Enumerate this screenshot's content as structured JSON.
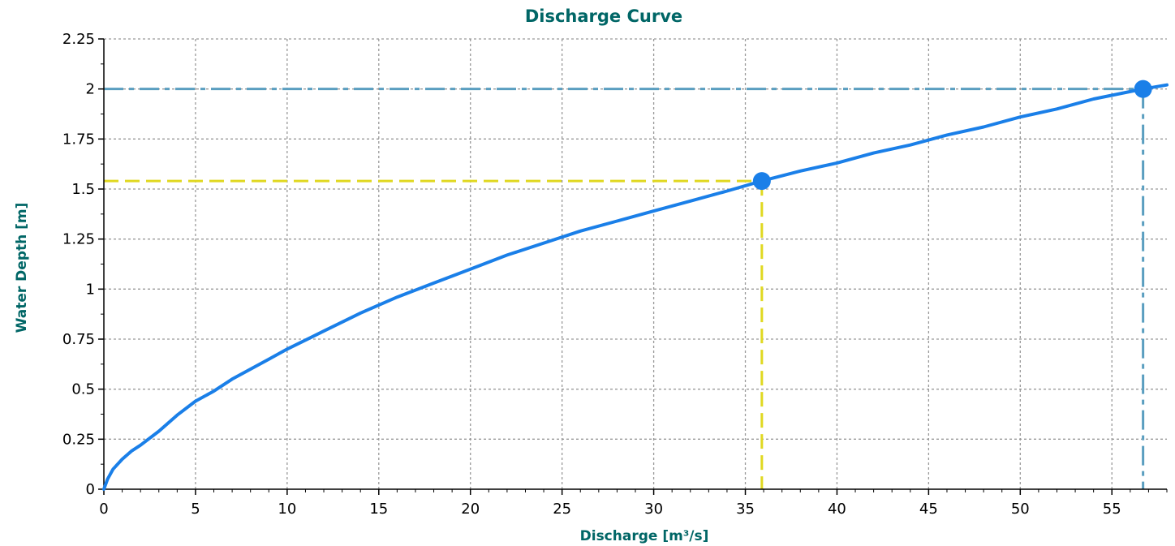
{
  "colors": {
    "title": "#006666",
    "curve": "#1a7fe8",
    "grid": "#999999",
    "axis": "#000000",
    "marker": "#1a7fe8",
    "guide_primary": "#e0d820",
    "guide_secondary": "#5a9ec0"
  },
  "chart_data": {
    "type": "line",
    "title": "Discharge Curve",
    "xlabel": "Discharge [m³/s]",
    "ylabel": "Water Depth [m]",
    "xlim": [
      0,
      58
    ],
    "ylim": [
      0,
      2.25
    ],
    "x_ticks": [
      0,
      5,
      10,
      15,
      20,
      25,
      30,
      35,
      40,
      45,
      50,
      55
    ],
    "y_ticks": [
      0,
      0.25,
      0.5,
      0.75,
      1,
      1.25,
      1.5,
      1.75,
      2,
      2.25
    ],
    "x_tick_labels": [
      "0",
      "5",
      "10",
      "15",
      "20",
      "25",
      "30",
      "35",
      "40",
      "45",
      "50",
      "55"
    ],
    "y_tick_labels": [
      "0",
      "0.25",
      "0.5",
      "0.75",
      "1",
      "1.25",
      "1.5",
      "1.75",
      "2",
      "2.25"
    ],
    "grid": true,
    "series": [
      {
        "x": [
          0,
          0.2,
          0.5,
          1,
          1.5,
          2,
          3,
          4,
          5,
          6,
          7,
          8,
          9,
          10,
          12,
          14,
          16,
          18,
          20,
          22,
          24,
          26,
          28,
          30,
          32,
          34,
          35.9,
          38,
          40,
          42,
          44,
          46,
          48,
          50,
          52,
          54,
          56.7,
          58
        ],
        "y": [
          0,
          0.05,
          0.1,
          0.15,
          0.19,
          0.22,
          0.29,
          0.37,
          0.44,
          0.49,
          0.55,
          0.6,
          0.65,
          0.7,
          0.79,
          0.88,
          0.96,
          1.03,
          1.1,
          1.17,
          1.23,
          1.29,
          1.34,
          1.39,
          1.44,
          1.49,
          1.54,
          1.59,
          1.63,
          1.68,
          1.72,
          1.77,
          1.81,
          1.86,
          1.9,
          1.95,
          2.0,
          2.02
        ]
      }
    ],
    "markers": [
      {
        "x": 35.9,
        "y": 1.54,
        "guide": "primary"
      },
      {
        "x": 56.7,
        "y": 2.0,
        "guide": "secondary"
      }
    ]
  }
}
